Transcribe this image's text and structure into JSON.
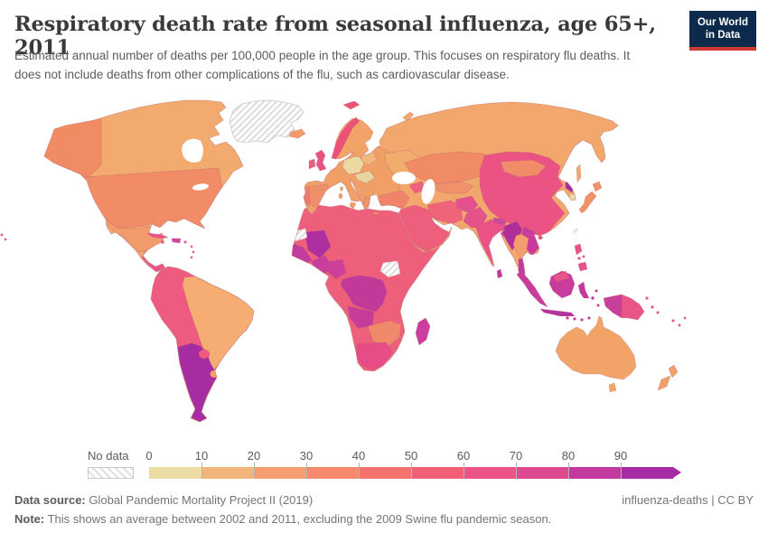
{
  "header": {
    "title": "Respiratory death rate from seasonal influenza, age 65+, 2011",
    "subtitle": "Estimated annual number of deaths per 100,000 people in the age group. This focuses on respiratory flu deaths. It does not include deaths from other complications of the flu, such as cardiovascular disease.",
    "logo": {
      "line1": "Our World",
      "line2": "in Data",
      "bg": "#0b2a4c",
      "accent": "#ce3a32"
    }
  },
  "footer": {
    "data_source_label": "Data source:",
    "data_source": " Global Pandemic Mortality Project II (2019)",
    "note_label": "Note:",
    "note": " This shows an average between 2002 and 2011, excluding the 2009 Swine flu pandemic season.",
    "attribution": "influenza-deaths | CC BY"
  },
  "chart_data": {
    "type": "choropleth_map",
    "title": "Respiratory death rate from seasonal influenza, age 65+, 2011",
    "unit": "deaths per 100,000 people in age group 65+",
    "projection": "world",
    "legend": {
      "no_data_label": "No data",
      "ticks": [
        "0",
        "10",
        "20",
        "30",
        "40",
        "50",
        "60",
        "70",
        "80",
        "90"
      ],
      "colors": [
        "#EBDDA4",
        "#F2B67C",
        "#F59E72",
        "#F5886D",
        "#F4736E",
        "#F05F75",
        "#EC5487",
        "#DE4A92",
        "#C23A9D",
        "#A62CA6"
      ],
      "open_ended_arrow": true,
      "no_data_pattern": "diagonal-hatch"
    },
    "regions": {
      "canada": {
        "value": 15,
        "color": "#F2AA6E"
      },
      "alaska": {
        "value": 25,
        "color": "#F18B64"
      },
      "usa": {
        "value": 25,
        "color": "#F18C66"
      },
      "mexico": {
        "value": 28,
        "color": "#F29C6B"
      },
      "central-america": {
        "value": 60,
        "color": "#E8548C"
      },
      "cuba": {
        "value": 58,
        "color": "#E8548A"
      },
      "hispaniola": {
        "value": 72,
        "color": "#D4489A"
      },
      "jamaica": {
        "value": 58,
        "color": "#E8548A"
      },
      "lesser-antilles": {
        "value": 58,
        "color": "#E8548A"
      },
      "andean-south-america": {
        "value": 55,
        "color": "#EE5B80"
      },
      "brazil": {
        "value": 15,
        "color": "#F5AD74"
      },
      "southern-cone": {
        "value": 95,
        "color": "#A52CA1"
      },
      "paraguay": {
        "value": 55,
        "color": "#EE5B80"
      },
      "uruguay": {
        "value": 15,
        "color": "#F2A368"
      },
      "greenland": {
        "value": null,
        "color": null
      },
      "iceland": {
        "value": 20,
        "color": "#F29A68"
      },
      "united-kingdom": {
        "value": 55,
        "color": "#E85180"
      },
      "ireland": {
        "value": 52,
        "color": "#EA5D82"
      },
      "scandinavia": {
        "value": 15,
        "color": "#F2A368"
      },
      "norway": {
        "value": 55,
        "color": "#EC5278"
      },
      "svalbard": {
        "value": 55,
        "color": "#EC5278"
      },
      "novaya-zemlya": {
        "value": 15,
        "color": "#F2A76C"
      },
      "western-europe": {
        "value": 18,
        "color": "#F0A067"
      },
      "germany": {
        "value": 5,
        "color": "#EBD9A2"
      },
      "central-europe": {
        "value": 8,
        "color": "#E8D49E"
      },
      "poland": {
        "value": 12,
        "color": "#F2B77C"
      },
      "spain": {
        "value": 28,
        "color": "#F0906A"
      },
      "portugal": {
        "value": 35,
        "color": "#EE7E6C"
      },
      "greece": {
        "value": 25,
        "color": "#F0946C"
      },
      "eastern-europe": {
        "value": 14,
        "color": "#F2AC6E"
      },
      "sicily": {
        "value": 18,
        "color": "#F0A067"
      },
      "sardinia": {
        "value": 18,
        "color": "#F0A067"
      },
      "corsica": {
        "value": 18,
        "color": "#F0A067"
      },
      "crete": {
        "value": 25,
        "color": "#F0946C"
      },
      "russia": {
        "value": 15,
        "color": "#F2A76C"
      },
      "sakhalin": {
        "value": 15,
        "color": "#F2A76C"
      },
      "turkey": {
        "value": 32,
        "color": "#F0846A"
      },
      "caucasus": {
        "value": 50,
        "color": "#EE6080"
      },
      "middle-east": {
        "value": 55,
        "color": "#EE5F7D"
      },
      "iran": {
        "value": 45,
        "color": "#F0647A"
      },
      "central-asia": {
        "value": 25,
        "color": "#F18B66"
      },
      "uzbekistan-turkmenistan": {
        "value": 30,
        "color": "#F0916B"
      },
      "afghanistan": {
        "value": 62,
        "color": "#E2518E"
      },
      "pakistan": {
        "value": 60,
        "color": "#E5528C"
      },
      "india": {
        "value": 55,
        "color": "#EC5187"
      },
      "nepal": {
        "value": 70,
        "color": "#C94A9A"
      },
      "bangladesh": {
        "value": 82,
        "color": "#B233A0"
      },
      "sri-lanka": {
        "value": 78,
        "color": "#C33A9E"
      },
      "china": {
        "value": 55,
        "color": "#EC5385"
      },
      "mongolia": {
        "value": 28,
        "color": "#F08D68"
      },
      "myanmar": {
        "value": 88,
        "color": "#AE2F9B"
      },
      "thailand": {
        "value": 25,
        "color": "#F49E6F"
      },
      "indochina": {
        "value": 75,
        "color": "#C93C9C"
      },
      "malay-peninsula": {
        "value": 78,
        "color": "#C13A9E"
      },
      "north-korea": {
        "value": 95,
        "color": "#A12BA3"
      },
      "south-korea": {
        "value": 5,
        "color": "#EBDCA6"
      },
      "japan": {
        "value": 22,
        "color": "#F29366"
      },
      "taiwan": {
        "value": null,
        "color": null
      },
      "hainan": {
        "value": 55,
        "color": "#EC5385"
      },
      "philippines": {
        "value": 58,
        "color": "#E8548A"
      },
      "sumatra": {
        "value": 75,
        "color": "#C93C9C"
      },
      "java": {
        "value": 85,
        "color": "#B5339E"
      },
      "borneo": {
        "value": 75,
        "color": "#C83C9D"
      },
      "borneo-north": {
        "value": 55,
        "color": "#E8548A"
      },
      "sulawesi": {
        "value": 78,
        "color": "#C33A9E"
      },
      "lesser-sunda": {
        "value": 75,
        "color": "#C93C9C"
      },
      "moluccas": {
        "value": 78,
        "color": "#C33A9E"
      },
      "new-guinea-west": {
        "value": 70,
        "color": "#C8409C"
      },
      "papua-new-guinea": {
        "value": 55,
        "color": "#EA5588"
      },
      "solomon-islands": {
        "value": 55,
        "color": "#EA5588"
      },
      "pacific-islands": {
        "value": 55,
        "color": "#E8548A"
      },
      "australia": {
        "value": 15,
        "color": "#F2A368"
      },
      "tasmania": {
        "value": 15,
        "color": "#F2A368"
      },
      "new-zealand": {
        "value": 18,
        "color": "#F0A068"
      },
      "north-africa": {
        "value": 55,
        "color": "#EE5F7B"
      },
      "west-africa-coast": {
        "value": 75,
        "color": "#C23C9D"
      },
      "mali": {
        "value": 88,
        "color": "#AE30A0"
      },
      "ghana-burkina": {
        "value": 72,
        "color": "#C93E9C"
      },
      "nigeria": {
        "value": 72,
        "color": "#CC3F9A"
      },
      "congo-drc": {
        "value": 78,
        "color": "#C23A99"
      },
      "angola": {
        "value": 75,
        "color": "#C53C9A"
      },
      "zambia-zimbabwe-botswana": {
        "value": 30,
        "color": "#F0886B"
      },
      "south-africa": {
        "value": 58,
        "color": "#E84C86"
      },
      "madagascar": {
        "value": 72,
        "color": "#CC3E9D"
      },
      "south-sudan": {
        "value": null,
        "color": null
      },
      "western-sahara": {
        "value": null,
        "color": null
      }
    }
  }
}
